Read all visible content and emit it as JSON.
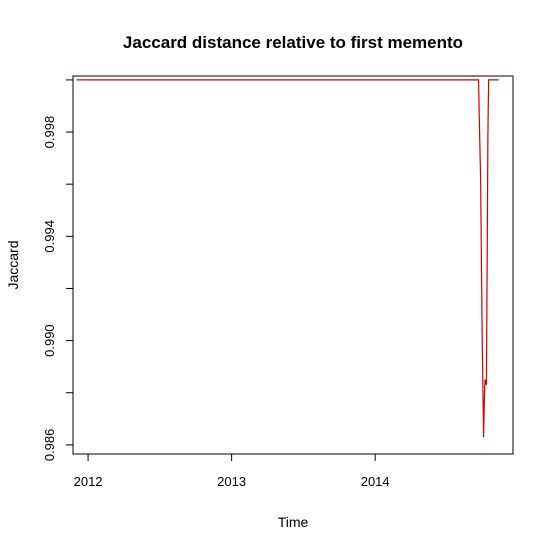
{
  "chart_data": {
    "type": "line",
    "title": "Jaccard distance relative to first memento",
    "xlabel": "Time",
    "ylabel": "Jaccard",
    "xlim": [
      2011.895,
      2014.96
    ],
    "ylim": [
      0.98565,
      1.00015
    ],
    "x_ticks": [
      {
        "value": 2012,
        "label": "2012"
      },
      {
        "value": 2013,
        "label": "2013"
      },
      {
        "value": 2014,
        "label": "2014"
      }
    ],
    "y_ticks": [
      {
        "value": 0.986,
        "label": "0.986"
      },
      {
        "value": 0.988,
        "label": ""
      },
      {
        "value": 0.99,
        "label": "0.990"
      },
      {
        "value": 0.992,
        "label": ""
      },
      {
        "value": 0.994,
        "label": "0.994"
      },
      {
        "value": 0.996,
        "label": ""
      },
      {
        "value": 0.998,
        "label": "0.998"
      },
      {
        "value": 1.0,
        "label": ""
      }
    ],
    "grid": false,
    "series": [
      {
        "color": "#cc0000",
        "x": [
          2011.92,
          2012.5,
          2013.0,
          2013.5,
          2014.0,
          2014.5,
          2014.72,
          2014.725,
          2014.735,
          2014.74,
          2014.745,
          2014.755,
          2014.76,
          2014.765,
          2014.775,
          2014.785,
          2014.79,
          2014.8,
          2014.86
        ],
        "y": [
          1.0,
          1.0,
          1.0,
          1.0,
          1.0,
          1.0,
          1.0,
          0.9986,
          0.996,
          0.993,
          0.9903,
          0.9863,
          0.9877,
          0.9885,
          0.9883,
          0.9978,
          1.0,
          1.0,
          1.0
        ]
      }
    ]
  }
}
